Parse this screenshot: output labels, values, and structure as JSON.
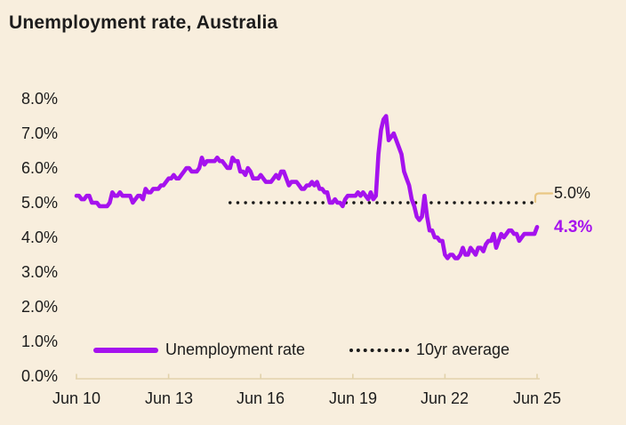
{
  "title": "Unemployment rate, Australia",
  "colors": {
    "background": "#f8eedd",
    "line": "#a512ee",
    "dotted": "#1a1a1a",
    "text": "#1c1c1c",
    "axis": "#e2d2ab",
    "callout": "#e9c784"
  },
  "legend": {
    "series_label": "Unemployment rate",
    "average_label": "10yr average"
  },
  "annotations": {
    "average_value": "5.0%",
    "latest_value": "4.3%"
  },
  "chart_data": {
    "type": "line",
    "title": "Unemployment rate, Australia",
    "unit": "percent",
    "frequency": "monthly",
    "x_start": "Jun 2010",
    "x_end": "Jun 2025",
    "ylim": [
      0,
      8
    ],
    "grid": false,
    "legend_position": "bottom",
    "y_tick_labels": [
      "8.0%",
      "7.0%",
      "6.0%",
      "5.0%",
      "4.0%",
      "3.0%",
      "2.0%",
      "1.0%",
      "0.0%"
    ],
    "x_tick_labels": [
      "Jun 10",
      "Jun 13",
      "Jun 16",
      "Jun 19",
      "Jun 22",
      "Jun 25"
    ],
    "series": [
      {
        "name": "Unemployment rate",
        "values": [
          5.2,
          5.2,
          5.1,
          5.1,
          5.2,
          5.2,
          5.0,
          5.0,
          5.0,
          4.9,
          4.9,
          4.9,
          4.9,
          5.0,
          5.3,
          5.2,
          5.2,
          5.3,
          5.2,
          5.2,
          5.2,
          5.2,
          5.0,
          5.1,
          5.2,
          5.2,
          5.1,
          5.4,
          5.3,
          5.3,
          5.4,
          5.4,
          5.4,
          5.5,
          5.5,
          5.6,
          5.7,
          5.7,
          5.8,
          5.7,
          5.7,
          5.8,
          5.9,
          6.0,
          6.0,
          5.9,
          5.9,
          5.9,
          6.0,
          6.3,
          6.1,
          6.2,
          6.2,
          6.2,
          6.2,
          6.3,
          6.2,
          6.2,
          6.1,
          6.0,
          6.0,
          6.3,
          6.2,
          6.2,
          5.9,
          5.9,
          5.8,
          6.0,
          5.9,
          5.7,
          5.7,
          5.7,
          5.8,
          5.7,
          5.6,
          5.6,
          5.6,
          5.7,
          5.8,
          5.7,
          5.9,
          5.9,
          5.7,
          5.5,
          5.6,
          5.6,
          5.6,
          5.5,
          5.4,
          5.4,
          5.5,
          5.5,
          5.6,
          5.5,
          5.6,
          5.4,
          5.4,
          5.3,
          5.3,
          5.0,
          5.0,
          5.1,
          5.0,
          5.0,
          4.9,
          5.1,
          5.2,
          5.2,
          5.2,
          5.2,
          5.3,
          5.2,
          5.3,
          5.2,
          5.1,
          5.3,
          5.1,
          5.2,
          6.4,
          7.1,
          7.4,
          7.5,
          6.8,
          6.9,
          7.0,
          6.8,
          6.6,
          6.4,
          5.9,
          5.7,
          5.5,
          5.1,
          4.9,
          4.6,
          4.5,
          4.6,
          5.2,
          4.6,
          4.2,
          4.2,
          4.0,
          4.0,
          3.9,
          3.9,
          3.5,
          3.4,
          3.5,
          3.5,
          3.4,
          3.4,
          3.5,
          3.7,
          3.5,
          3.5,
          3.7,
          3.6,
          3.5,
          3.7,
          3.7,
          3.6,
          3.8,
          3.9,
          3.9,
          4.1,
          3.7,
          3.9,
          4.1,
          4.0,
          4.1,
          4.2,
          4.2,
          4.1,
          4.1,
          3.9,
          4.0,
          4.1,
          4.1,
          4.1,
          4.1,
          4.1,
          4.3
        ]
      }
    ],
    "average": {
      "name": "10yr average",
      "value": 5.0,
      "start": "Jun 2015",
      "end": "Jun 2025"
    },
    "latest": 4.3
  }
}
